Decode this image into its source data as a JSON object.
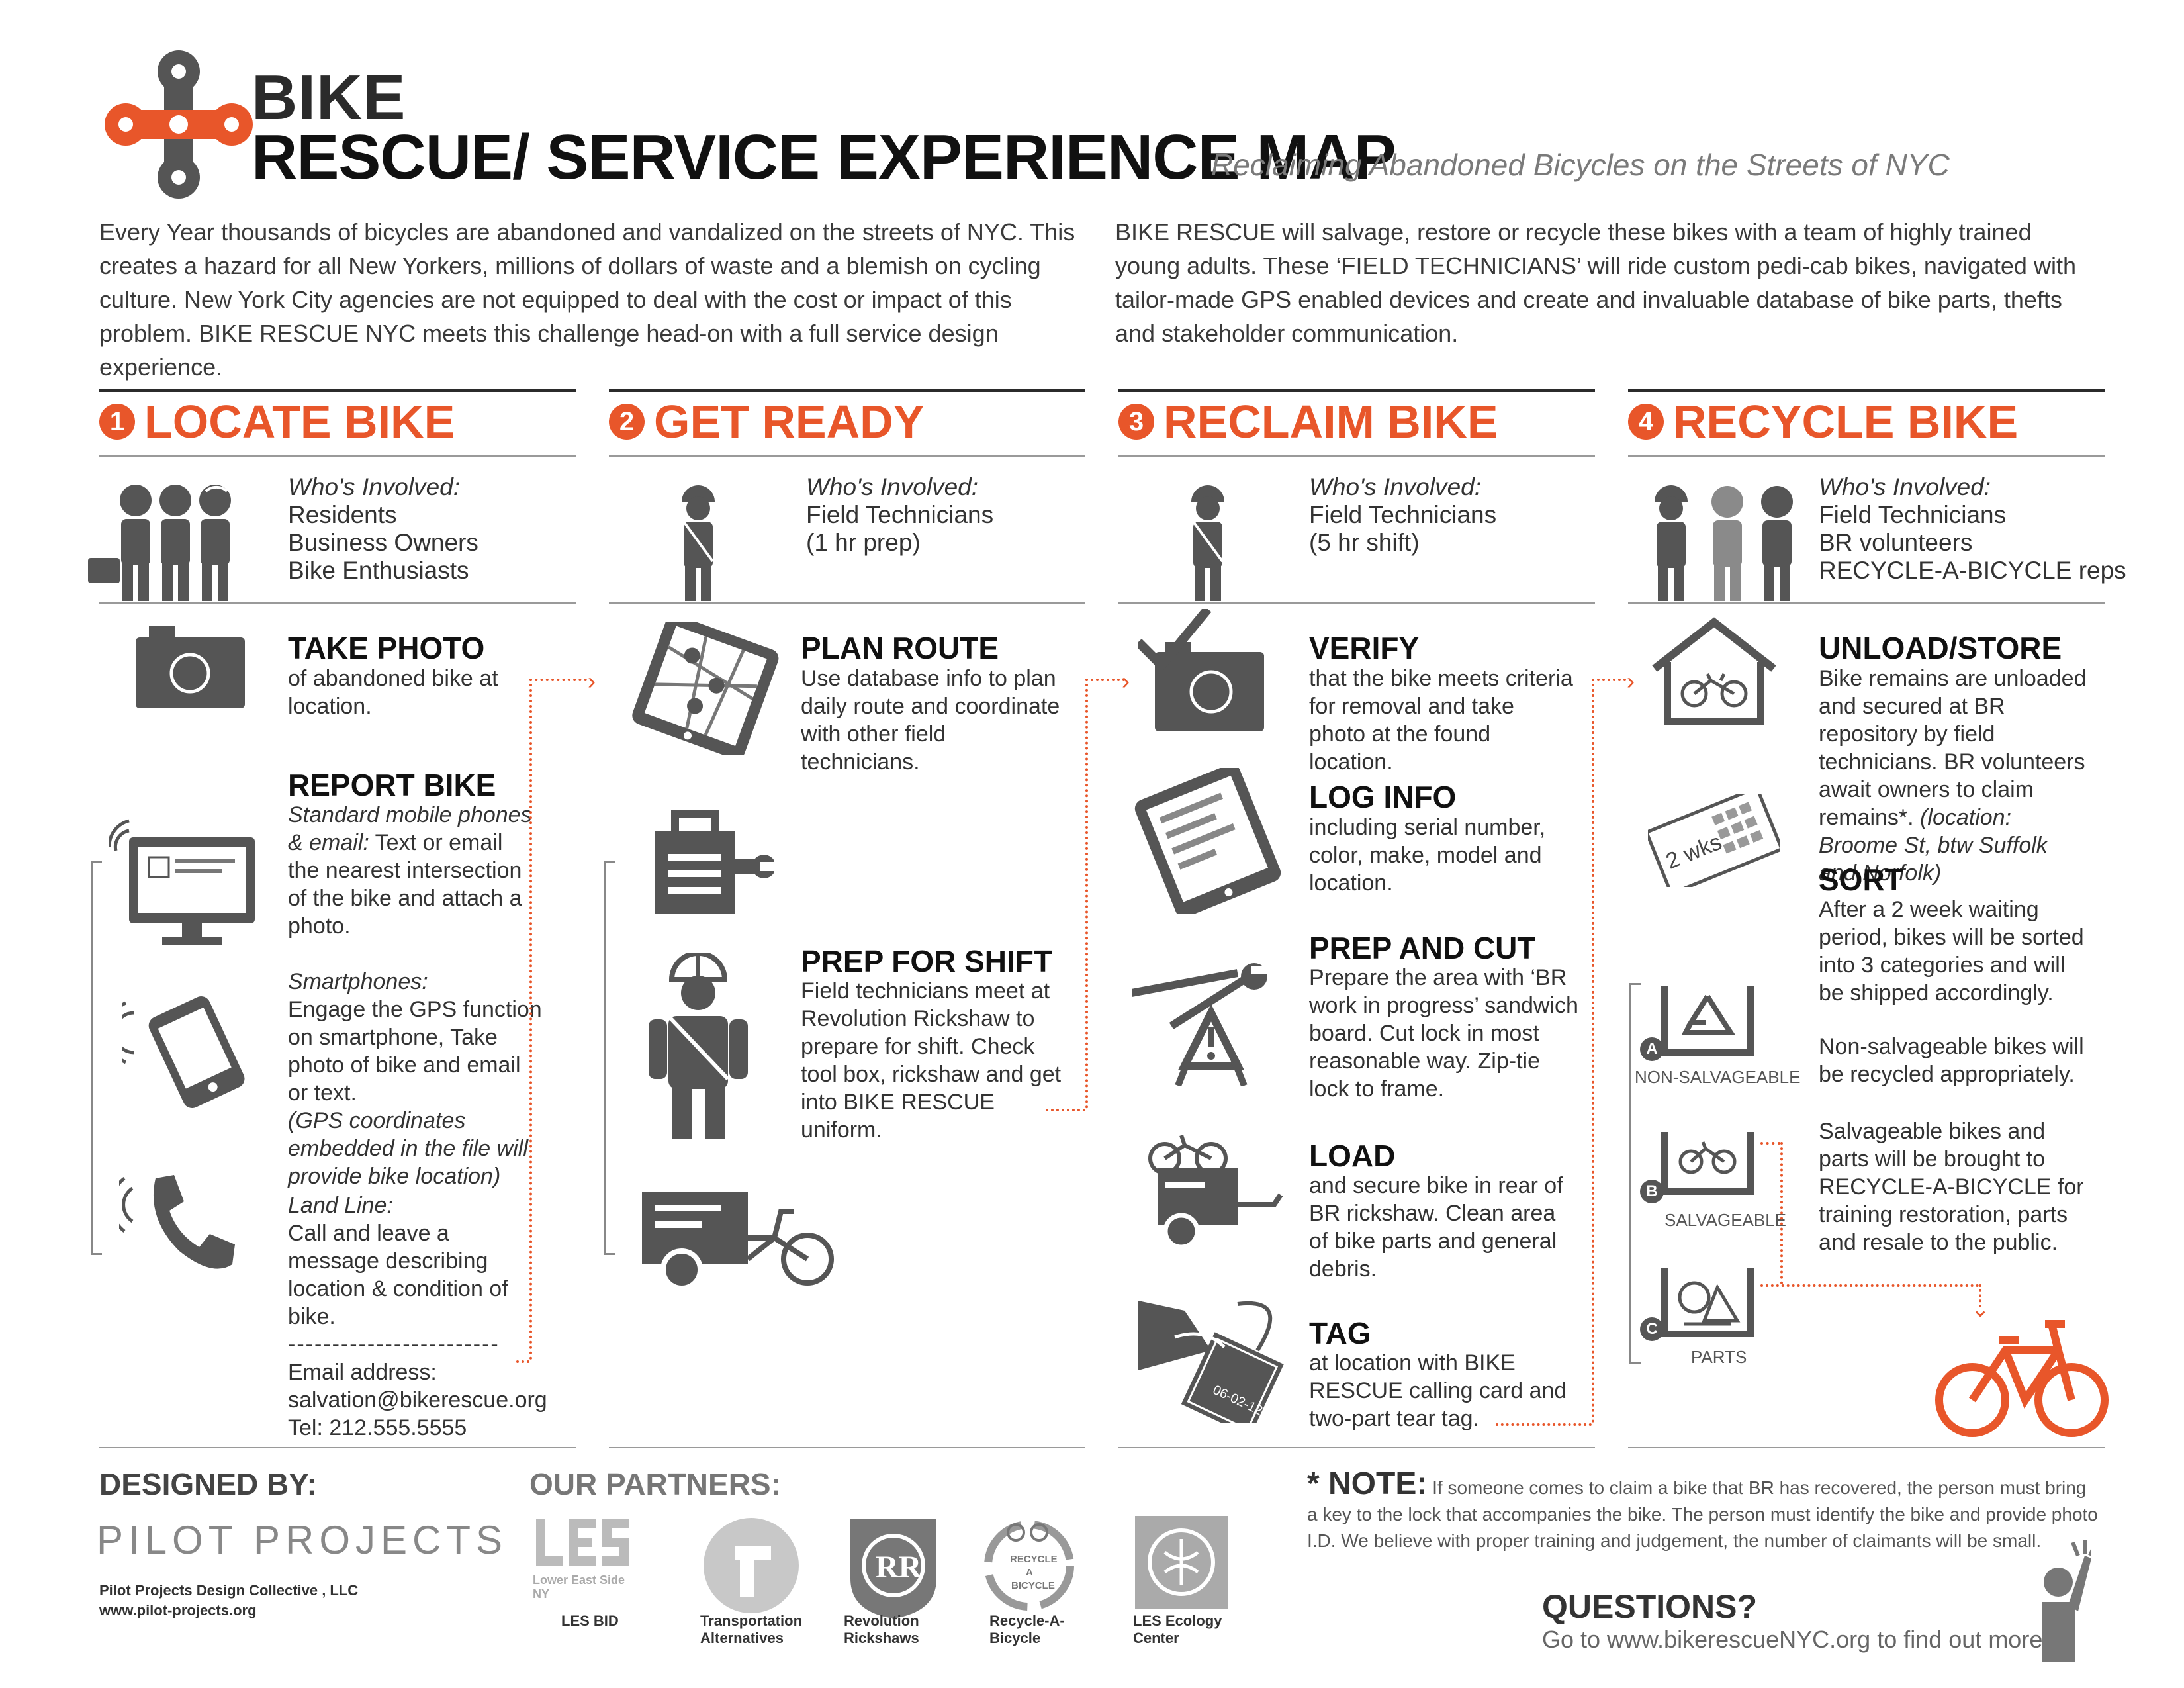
{
  "header": {
    "brand_top": "BIKE",
    "brand_main": "RESCUE",
    "title_rest": "/ SERVICE EXPERIENCE MAP",
    "subtitle": "Reclaiming Abandoned Bicycles on the Streets of NYC"
  },
  "intro": {
    "left": "Every Year thousands of bicycles are abandoned and vandalized on the streets of NYC. This creates a hazard for all New Yorkers, millions of dollars of waste and a blemish on cycling culture. New York City agencies are not equipped to deal with the cost or impact of this problem. BIKE RESCUE NYC meets this challenge head-on with a full service design experience.",
    "right": "BIKE RESCUE will salvage, restore or recycle these bikes with a team of highly trained young adults. These ‘FIELD TECHNICIANS’ will ride custom pedi-cab bikes, navigated with tailor-made GPS enabled devices and create and invaluable database of bike parts, thefts and stakeholder communication."
  },
  "who_label": "Who's Involved:",
  "sections": [
    {
      "number": "1",
      "title": "LOCATE BIKE",
      "who": [
        "Residents",
        "Business Owners",
        "Bike Enthusiasts"
      ],
      "steps": [
        {
          "title": "TAKE PHOTO",
          "body": "of abandoned bike at location."
        },
        {
          "title": "REPORT BIKE",
          "sub1_label": "Standard mobile phones & email:",
          "sub1_body": "Text or email the nearest intersection of the bike and attach a photo.",
          "sub2_label": "Smartphones:",
          "sub2_body": "Engage the GPS function on smartphone, Take photo of bike and email or text.",
          "sub2_note": "(GPS coordinates embedded in the file will provide bike location)",
          "sub3_label": "Land Line:",
          "sub3_body": "Call and leave a message describing location & condition of bike.",
          "divider": "------------------------",
          "email_label": "Email address:",
          "email": "salvation@bikerescue.org",
          "tel": "Tel: 212.555.5555"
        }
      ]
    },
    {
      "number": "2",
      "title": "GET READY",
      "who": [
        "Field Technicians",
        "(1 hr prep)"
      ],
      "steps": [
        {
          "title": "PLAN ROUTE",
          "body": "Use database info to plan daily route and coordinate with other field technicians."
        },
        {
          "title": "PREP FOR SHIFT",
          "body": "Field technicians meet at Revolution Rickshaw to prepare for shift. Check tool box, rickshaw and get into BIKE RESCUE uniform."
        }
      ]
    },
    {
      "number": "3",
      "title": "RECLAIM BIKE",
      "who": [
        "Field Technicians",
        "(5 hr shift)"
      ],
      "steps": [
        {
          "title": "VERIFY",
          "body": "that the bike meets criteria for removal and take photo at the found location."
        },
        {
          "title": "LOG INFO",
          "body": "including serial number, color, make, model and location."
        },
        {
          "title": "PREP AND CUT",
          "body": "Prepare the area with ‘BR work in progress’ sandwich board. Cut lock in most reasonable way. Zip-tie lock to frame."
        },
        {
          "title": "LOAD",
          "body": "and secure bike in rear of BR rickshaw. Clean area of bike parts and general debris."
        },
        {
          "title": "TAG",
          "body": "at location with BIKE RESCUE calling card and two-part tear tag."
        }
      ],
      "tag_date": "06-02-12"
    },
    {
      "number": "4",
      "title": "RECYCLE BIKE",
      "who": [
        "Field Technicians",
        "BR volunteers",
        "RECYCLE-A-BICYCLE reps"
      ],
      "steps": [
        {
          "title": "UNLOAD/STORE",
          "body": "Bike remains  are unloaded and secured at BR repository by field technicians. BR volunteers await owners to claim remains*.",
          "note": "(location: Broome St, btw Suffolk and Norfolk)"
        },
        {
          "title": "SORT",
          "body": "After a 2 week waiting period, bikes will be sorted into 3 categories and will be shipped accordingly.",
          "body2": "Non-salvageable bikes will be recycled appropriately.",
          "body3": "Salvageable bikes and parts will be brought to RECYCLE-A-BICYCLE for training restoration, parts and resale to the public."
        }
      ],
      "calendar_label": "2 wks",
      "categories": [
        {
          "letter": "A",
          "label": "NON-SALVAGEABLE"
        },
        {
          "letter": "B",
          "label": "SALVAGEABLE"
        },
        {
          "letter": "C",
          "label": "PARTS"
        }
      ]
    }
  ],
  "footer": {
    "designed_by": "DESIGNED BY:",
    "designer": "PILOT PROJECTS",
    "designer_llc": "Pilot Projects Design Collective , LLC",
    "designer_url": "www.pilot-projects.org",
    "partners_heading": "OUR PARTNERS:",
    "partners": [
      {
        "name_l1": "LES BID",
        "name_l2": "",
        "logo_text": "Lower East Side NY"
      },
      {
        "name_l1": "Transportation",
        "name_l2": "Alternatives",
        "logo_text": ""
      },
      {
        "name_l1": "Revolution",
        "name_l2": "Rickshaws",
        "logo_text": ""
      },
      {
        "name_l1": "Recycle-A-",
        "name_l2": "Bicycle",
        "logo_text": ""
      },
      {
        "name_l1": "LES Ecology",
        "name_l2": "Center",
        "logo_text": ""
      }
    ],
    "note_label": "* NOTE:",
    "note_text": "If someone comes to claim a bike that BR has recovered, the person must bring a key to the lock that accompanies the bike. The person must identify the bike and provide photo I.D. We believe with proper training and judgement, the number of claimants will be small.",
    "questions": "QUESTIONS?",
    "goto": "Go to www.bikerescueNYC.org to find out more."
  },
  "colors": {
    "accent": "#e8562a",
    "dark": "#2b2b2b",
    "icon": "#555555"
  }
}
